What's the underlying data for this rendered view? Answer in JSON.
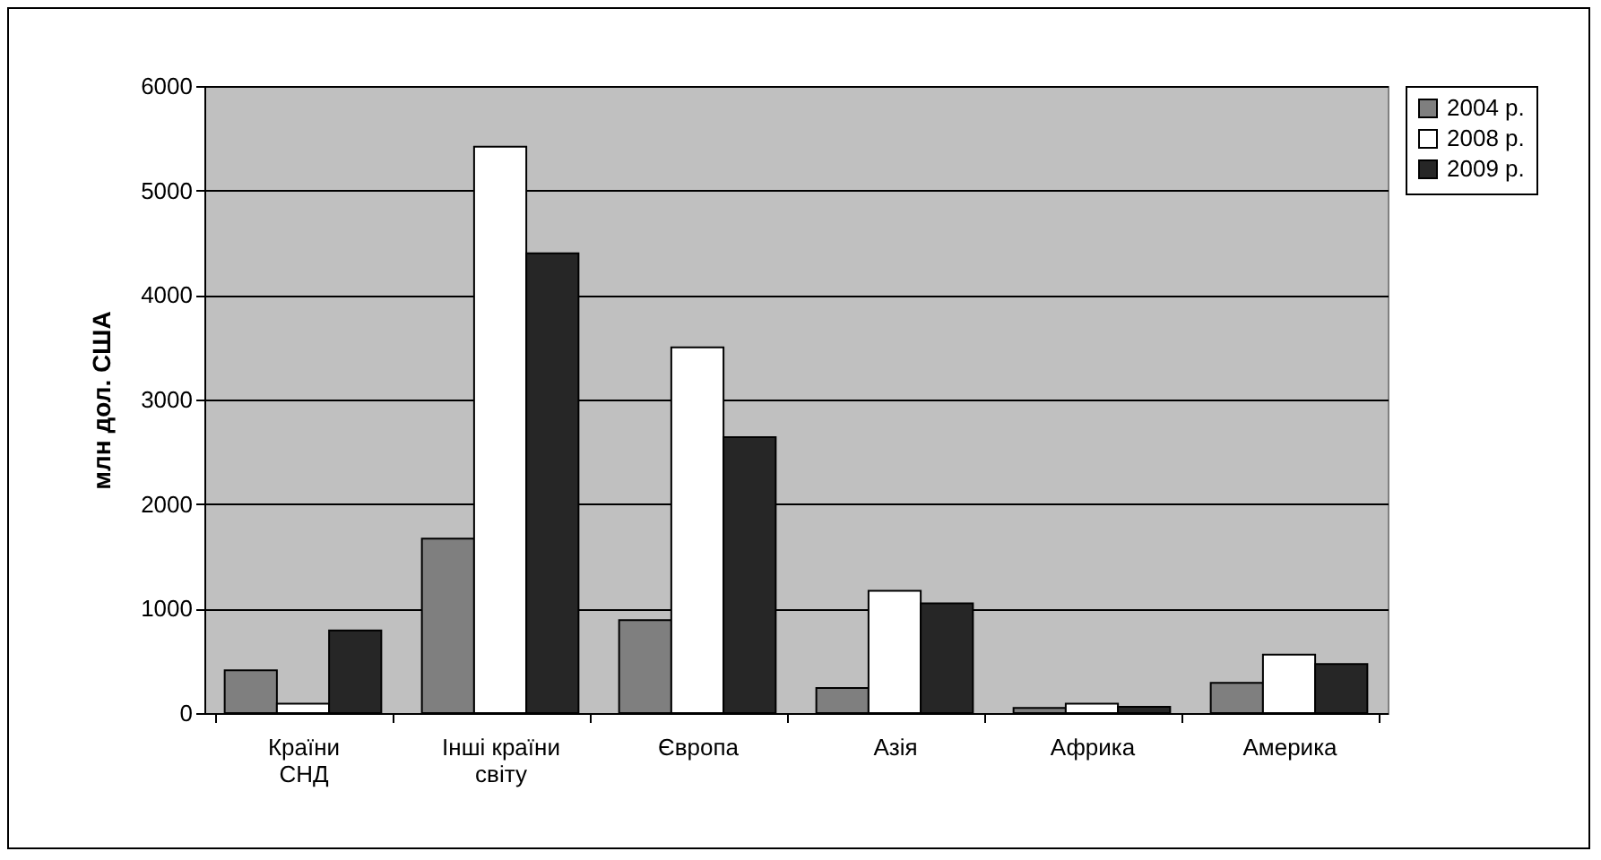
{
  "chart_data": {
    "type": "bar",
    "ylabel": "млн дол. США",
    "categories": [
      "Країни СНД",
      "Інші країни світу",
      "Європа",
      "Азія",
      "Африка",
      "Америка"
    ],
    "series": [
      {
        "name": "2004 р.",
        "color": "#7f7f7f",
        "values": [
          410,
          1670,
          890,
          240,
          50,
          290
        ]
      },
      {
        "name": "2008 р.",
        "color": "#ffffff",
        "values": [
          90,
          5420,
          3500,
          1170,
          90,
          560
        ]
      },
      {
        "name": "2009 р.",
        "color": "#262626",
        "values": [
          790,
          4400,
          2640,
          1050,
          60,
          470
        ]
      }
    ],
    "ylim": [
      0,
      6000
    ],
    "yticks": [
      0,
      1000,
      2000,
      3000,
      4000,
      5000,
      6000
    ],
    "grid": "y",
    "legend": "right"
  }
}
